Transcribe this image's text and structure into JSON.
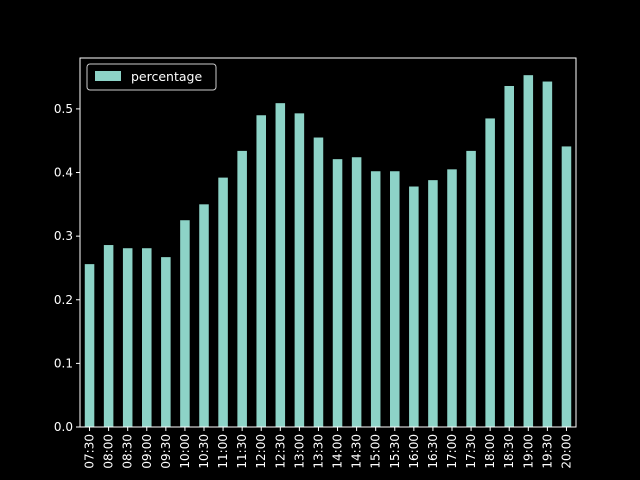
{
  "chart_data": {
    "type": "bar",
    "categories": [
      "07:30",
      "08:00",
      "08:30",
      "09:00",
      "09:30",
      "10:00",
      "10:30",
      "11:00",
      "11:30",
      "12:00",
      "12:30",
      "13:00",
      "13:30",
      "14:00",
      "14:30",
      "15:00",
      "15:30",
      "16:00",
      "16:30",
      "17:00",
      "17:30",
      "18:00",
      "18:30",
      "19:00",
      "19:30",
      "20:00"
    ],
    "series": [
      {
        "name": "percentage",
        "color": "#8dd3c7",
        "values": [
          0.256,
          0.286,
          0.281,
          0.281,
          0.267,
          0.325,
          0.35,
          0.392,
          0.434,
          0.49,
          0.509,
          0.493,
          0.455,
          0.421,
          0.424,
          0.402,
          0.402,
          0.378,
          0.388,
          0.405,
          0.434,
          0.485,
          0.536,
          0.553,
          0.543,
          0.441
        ]
      }
    ],
    "yticks": [
      "0.0",
      "0.1",
      "0.2",
      "0.3",
      "0.4",
      "0.5"
    ],
    "ylim": [
      0,
      0.58
    ],
    "title": "",
    "xlabel": "",
    "ylabel": "",
    "legend": "top-left",
    "grid": false,
    "background": "#000000",
    "foreground": "#ffffff"
  }
}
